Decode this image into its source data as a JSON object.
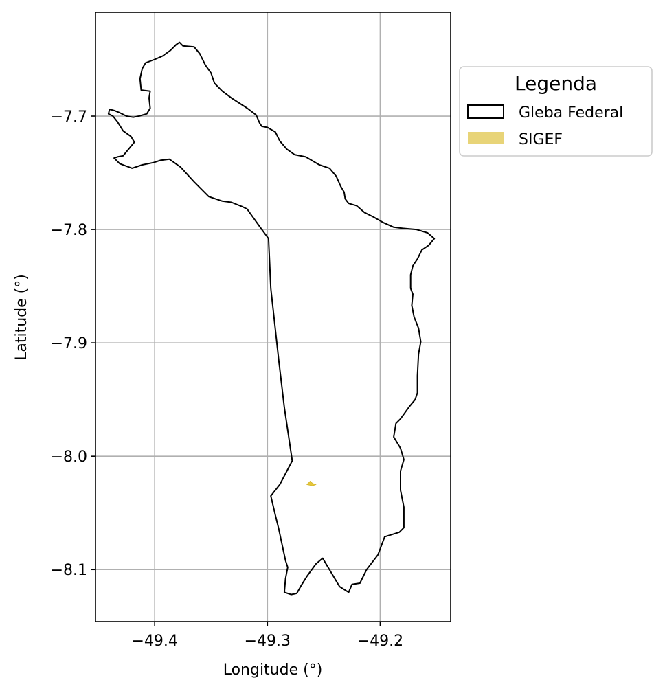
{
  "chart_data": {
    "type": "map",
    "xlabel": "Longitude (°)",
    "ylabel": "Latitude (°)",
    "xlim": [
      -49.4525,
      -49.1375
    ],
    "ylim": [
      -8.1459,
      -7.6085
    ],
    "xticks": [
      -49.4,
      -49.3,
      -49.2
    ],
    "xtick_labels": [
      "−49.4",
      "−49.3",
      "−49.2"
    ],
    "yticks": [
      -7.7,
      -7.8,
      -7.9,
      -8.0,
      -8.1
    ],
    "ytick_labels": [
      "−7.7",
      "−7.8",
      "−7.9",
      "−8.0",
      "−8.1"
    ],
    "grid": true,
    "legend": {
      "title": "Legenda",
      "placement": "outside-upper-right",
      "entries": [
        {
          "label": "Gleba Federal",
          "style": "outline",
          "edge_color": "#000000",
          "fill": "none"
        },
        {
          "label": "SIGEF",
          "style": "filled",
          "fill": "#e8d478"
        }
      ]
    },
    "layers": [
      {
        "name": "Gleba Federal",
        "edge_color": "#000000",
        "fill": "none",
        "polygon": [
          [
            -49.378,
            -7.635
          ],
          [
            -49.375,
            -7.638
          ],
          [
            -49.365,
            -7.639
          ],
          [
            -49.36,
            -7.645
          ],
          [
            -49.355,
            -7.655
          ],
          [
            -49.35,
            -7.662
          ],
          [
            -49.347,
            -7.671
          ],
          [
            -49.34,
            -7.678
          ],
          [
            -49.332,
            -7.684
          ],
          [
            -49.318,
            -7.693
          ],
          [
            -49.31,
            -7.699
          ],
          [
            -49.307,
            -7.706
          ],
          [
            -49.305,
            -7.709
          ],
          [
            -49.3,
            -7.71
          ],
          [
            -49.293,
            -7.714
          ],
          [
            -49.289,
            -7.722
          ],
          [
            -49.283,
            -7.729
          ],
          [
            -49.276,
            -7.734
          ],
          [
            -49.266,
            -7.736
          ],
          [
            -49.254,
            -7.743
          ],
          [
            -49.245,
            -7.746
          ],
          [
            -49.239,
            -7.753
          ],
          [
            -49.235,
            -7.762
          ],
          [
            -49.232,
            -7.767
          ],
          [
            -49.231,
            -7.773
          ],
          [
            -49.228,
            -7.777
          ],
          [
            -49.221,
            -7.779
          ],
          [
            -49.214,
            -7.785
          ],
          [
            -49.206,
            -7.789
          ],
          [
            -49.197,
            -7.794
          ],
          [
            -49.188,
            -7.798
          ],
          [
            -49.18,
            -7.799
          ],
          [
            -49.168,
            -7.8
          ],
          [
            -49.158,
            -7.803
          ],
          [
            -49.152,
            -7.808
          ],
          [
            -49.157,
            -7.814
          ],
          [
            -49.163,
            -7.818
          ],
          [
            -49.167,
            -7.826
          ],
          [
            -49.171,
            -7.832
          ],
          [
            -49.173,
            -7.84
          ],
          [
            -49.173,
            -7.852
          ],
          [
            -49.171,
            -7.857
          ],
          [
            -49.172,
            -7.867
          ],
          [
            -49.17,
            -7.877
          ],
          [
            -49.166,
            -7.887
          ],
          [
            -49.164,
            -7.899
          ],
          [
            -49.166,
            -7.91
          ],
          [
            -49.167,
            -7.929
          ],
          [
            -49.167,
            -7.944
          ],
          [
            -49.169,
            -7.95
          ],
          [
            -49.174,
            -7.956
          ],
          [
            -49.182,
            -7.967
          ],
          [
            -49.186,
            -7.971
          ],
          [
            -49.188,
            -7.983
          ],
          [
            -49.182,
            -7.993
          ],
          [
            -49.179,
            -8.003
          ],
          [
            -49.182,
            -8.013
          ],
          [
            -49.182,
            -8.03
          ],
          [
            -49.179,
            -8.045
          ],
          [
            -49.179,
            -8.063
          ],
          [
            -49.183,
            -8.067
          ],
          [
            -49.196,
            -8.071
          ],
          [
            -49.202,
            -8.087
          ],
          [
            -49.212,
            -8.1
          ],
          [
            -49.218,
            -8.112
          ],
          [
            -49.225,
            -8.113
          ],
          [
            -49.228,
            -8.12
          ],
          [
            -49.236,
            -8.115
          ],
          [
            -49.251,
            -8.09
          ],
          [
            -49.257,
            -8.095
          ],
          [
            -49.265,
            -8.106
          ],
          [
            -49.27,
            -8.114
          ],
          [
            -49.274,
            -8.121
          ],
          [
            -49.279,
            -8.122
          ],
          [
            -49.285,
            -8.12
          ],
          [
            -49.284,
            -8.108
          ],
          [
            -49.282,
            -8.098
          ],
          [
            -49.284,
            -8.092
          ],
          [
            -49.29,
            -8.064
          ],
          [
            -49.293,
            -8.052
          ],
          [
            -49.297,
            -8.035
          ],
          [
            -49.289,
            -8.025
          ],
          [
            -49.278,
            -8.004
          ],
          [
            -49.285,
            -7.957
          ],
          [
            -49.29,
            -7.915
          ],
          [
            -49.297,
            -7.852
          ],
          [
            -49.299,
            -7.808
          ],
          [
            -49.305,
            -7.8
          ],
          [
            -49.313,
            -7.789
          ],
          [
            -49.318,
            -7.782
          ],
          [
            -49.322,
            -7.78
          ],
          [
            -49.332,
            -7.776
          ],
          [
            -49.34,
            -7.775
          ],
          [
            -49.352,
            -7.771
          ],
          [
            -49.365,
            -7.758
          ],
          [
            -49.377,
            -7.745
          ],
          [
            -49.387,
            -7.738
          ],
          [
            -49.395,
            -7.739
          ],
          [
            -49.401,
            -7.741
          ],
          [
            -49.411,
            -7.743
          ],
          [
            -49.42,
            -7.746
          ],
          [
            -49.431,
            -7.742
          ],
          [
            -49.436,
            -7.737
          ],
          [
            -49.433,
            -7.736
          ],
          [
            -49.428,
            -7.735
          ],
          [
            -49.418,
            -7.723
          ],
          [
            -49.421,
            -7.718
          ],
          [
            -49.428,
            -7.713
          ],
          [
            -49.433,
            -7.705
          ],
          [
            -49.437,
            -7.7
          ],
          [
            -49.441,
            -7.698
          ],
          [
            -49.44,
            -7.694
          ],
          [
            -49.436,
            -7.695
          ],
          [
            -49.431,
            -7.697
          ],
          [
            -49.425,
            -7.7
          ],
          [
            -49.419,
            -7.701
          ],
          [
            -49.414,
            -7.7
          ],
          [
            -49.407,
            -7.698
          ],
          [
            -49.404,
            -7.693
          ],
          [
            -49.405,
            -7.684
          ],
          [
            -49.404,
            -7.678
          ],
          [
            -49.412,
            -7.677
          ],
          [
            -49.413,
            -7.667
          ],
          [
            -49.411,
            -7.658
          ],
          [
            -49.408,
            -7.653
          ],
          [
            -49.4,
            -7.65
          ],
          [
            -49.393,
            -7.647
          ],
          [
            -49.386,
            -7.642
          ],
          [
            -49.381,
            -7.637
          ]
        ]
      },
      {
        "name": "SIGEF",
        "edge_color": "#d4b830",
        "fill": "#e8c73a",
        "polygon": [
          [
            -49.264,
            -8.024
          ],
          [
            -49.262,
            -8.022
          ],
          [
            -49.26,
            -8.024
          ],
          [
            -49.257,
            -8.025
          ],
          [
            -49.26,
            -8.026
          ],
          [
            -49.265,
            -8.025
          ]
        ]
      }
    ]
  }
}
